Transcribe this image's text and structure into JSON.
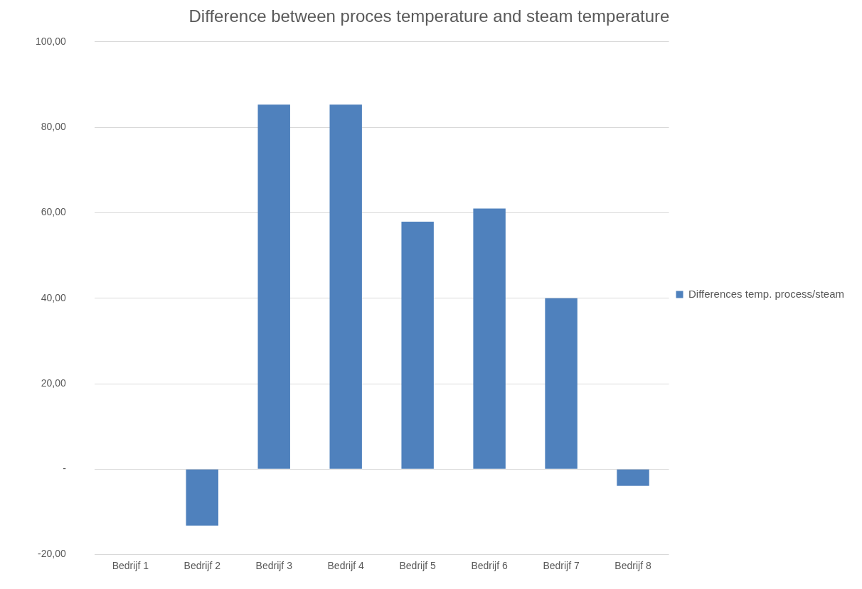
{
  "chart_data": {
    "type": "bar",
    "title": "Difference between proces temperature and steam temperature",
    "categories": [
      "Bedrijf 1",
      "Bedrijf 2",
      "Bedrijf 3",
      "Bedrijf 4",
      "Bedrijf 5",
      "Bedrijf 6",
      "Bedrijf 7",
      "Bedrijf 8"
    ],
    "series": [
      {
        "name": "Differences temp. process/steam",
        "color": "#4f81bd",
        "values": [
          0,
          -13.2,
          85.3,
          85.3,
          57.9,
          61.0,
          40.0,
          -3.9
        ]
      }
    ],
    "ylim": [
      -20,
      100
    ],
    "yticks": [
      {
        "value": -20,
        "label": "-20,00"
      },
      {
        "value": 0,
        "label": "-"
      },
      {
        "value": 20,
        "label": "20,00"
      },
      {
        "value": 40,
        "label": "40,00"
      },
      {
        "value": 60,
        "label": "60,00"
      },
      {
        "value": 80,
        "label": "80,00"
      },
      {
        "value": 100,
        "label": "100,00"
      }
    ],
    "grid": "y",
    "legend": "right"
  }
}
